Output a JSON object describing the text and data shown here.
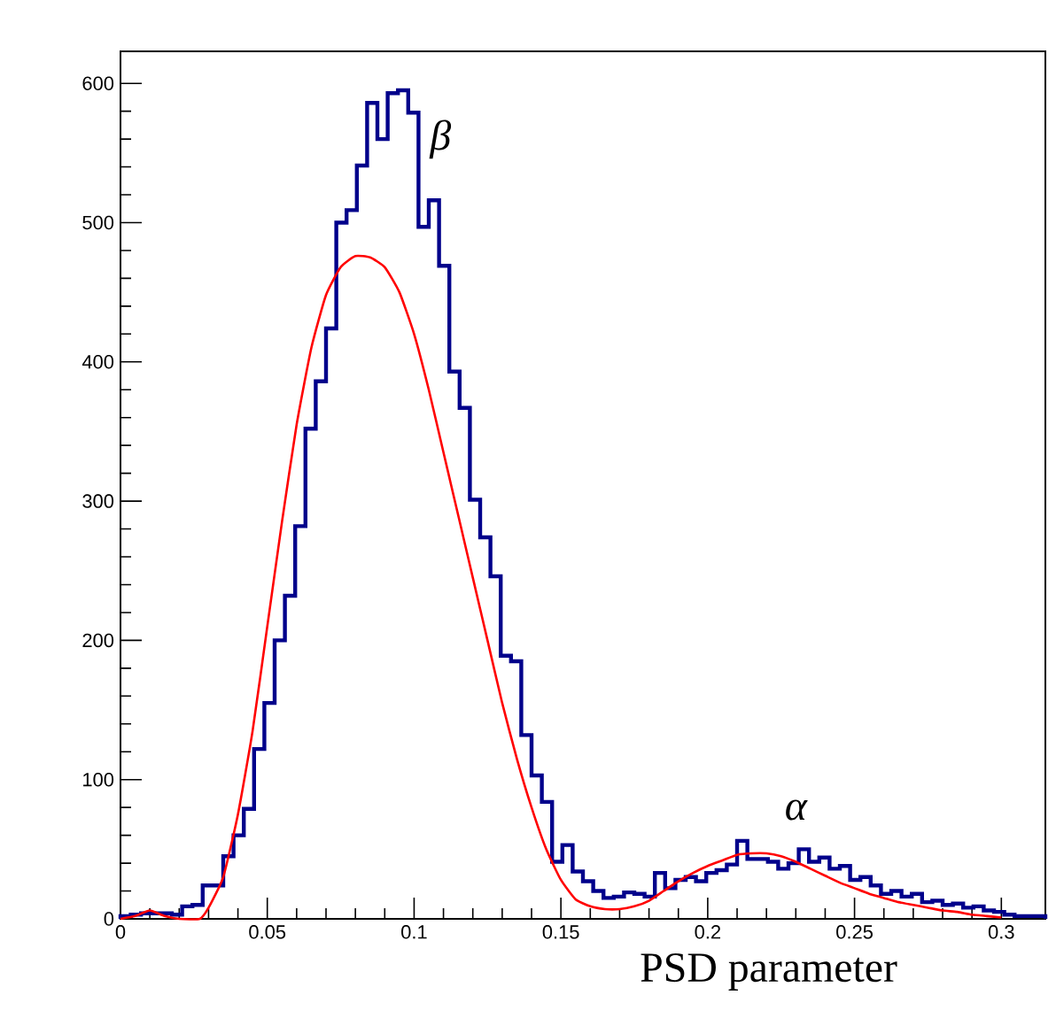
{
  "chart_data": {
    "type": "histogram",
    "xlabel": "PSD parameter",
    "color": "#00008b",
    "bins": [
      0,
      0.0035,
      0.007,
      0.0105,
      0.014,
      0.0175,
      0.021,
      0.0245,
      0.028,
      0.0315,
      0.035,
      0.0385,
      0.042,
      0.0455,
      0.049,
      0.0525,
      0.056,
      0.0595,
      0.063,
      0.0665,
      0.07,
      0.0735,
      0.077,
      0.0805,
      0.084,
      0.0875,
      0.091,
      0.0945,
      0.098,
      0.1015,
      0.105,
      0.1085,
      0.112,
      0.1155,
      0.119,
      0.1225,
      0.126,
      0.1295,
      0.133,
      0.1365,
      0.14,
      0.1435,
      0.147,
      0.1505,
      0.154,
      0.1575,
      0.161,
      0.1645,
      0.168,
      0.1715,
      0.175,
      0.1785,
      0.182,
      0.1855,
      0.189,
      0.1925,
      0.196,
      0.1995,
      0.203,
      0.2065,
      0.21,
      0.2135,
      0.217,
      0.2205,
      0.224,
      0.2275,
      0.231,
      0.2345,
      0.238,
      0.2415,
      0.245,
      0.2485,
      0.252,
      0.2555,
      0.259,
      0.2625,
      0.266,
      0.2695,
      0.273,
      0.2765,
      0.28,
      0.2835,
      0.287,
      0.2905,
      0.294,
      0.2975,
      0.301,
      0.3045,
      0.308,
      0.3115,
      0.315
    ],
    "values": [
      2,
      3,
      4,
      4,
      4,
      3,
      9,
      10,
      24,
      24,
      45,
      60,
      79,
      122,
      155,
      200,
      232,
      282,
      352,
      386,
      424,
      500,
      509,
      541,
      586,
      560,
      593,
      595,
      579,
      497,
      516,
      469,
      393,
      367,
      301,
      274,
      246,
      189,
      185,
      132,
      103,
      84,
      41,
      53,
      34,
      27,
      20,
      15,
      16,
      19,
      18,
      16,
      33,
      22,
      28,
      30,
      27,
      33,
      35,
      39,
      56,
      43,
      43,
      41,
      36,
      40,
      50,
      41,
      44,
      36,
      38,
      28,
      30,
      24,
      18,
      20,
      16,
      18,
      12,
      13,
      10,
      11,
      8,
      9,
      6,
      5,
      3,
      2,
      2,
      2
    ],
    "series": [
      {
        "type": "line",
        "color": "#ff0000",
        "x": [
          0,
          0.005,
          0.01,
          0.015,
          0.02,
          0.027,
          0.03,
          0.035,
          0.04,
          0.045,
          0.05,
          0.055,
          0.06,
          0.065,
          0.07,
          0.075,
          0.08,
          0.085,
          0.09,
          0.095,
          0.1,
          0.105,
          0.11,
          0.115,
          0.12,
          0.125,
          0.13,
          0.135,
          0.14,
          0.145,
          0.15,
          0.155,
          0.16,
          0.165,
          0.17,
          0.175,
          0.18,
          0.185,
          0.19,
          0.195,
          0.2,
          0.205,
          0.21,
          0.215,
          0.22,
          0.225,
          0.23,
          0.235,
          0.24,
          0.245,
          0.25,
          0.255,
          0.26,
          0.265,
          0.27,
          0.275,
          0.28,
          0.285,
          0.29,
          0.295,
          0.3
        ],
        "values": [
          0,
          2,
          6,
          2,
          0,
          0,
          8,
          30,
          75,
          135,
          210,
          285,
          355,
          410,
          448,
          468,
          476,
          475,
          468,
          450,
          420,
          380,
          335,
          290,
          245,
          200,
          155,
          115,
          80,
          50,
          28,
          14,
          9,
          7,
          7,
          9,
          13,
          20,
          27,
          33,
          38,
          42,
          46,
          47,
          47,
          45,
          41,
          36,
          31,
          26,
          22,
          18,
          15,
          12,
          10,
          8,
          6,
          5,
          3,
          2,
          1
        ]
      }
    ],
    "annotations": [
      {
        "text": "β",
        "x": 0.109,
        "y": 516
      },
      {
        "text": "α",
        "x": 0.23,
        "y": 41
      }
    ],
    "xlim": [
      0,
      0.315
    ],
    "ylim": [
      0,
      623
    ],
    "xticks": [
      0,
      0.05,
      0.1,
      0.15,
      0.2,
      0.25,
      0.3
    ],
    "yticks": [
      0,
      100,
      200,
      300,
      400,
      500,
      600
    ]
  }
}
